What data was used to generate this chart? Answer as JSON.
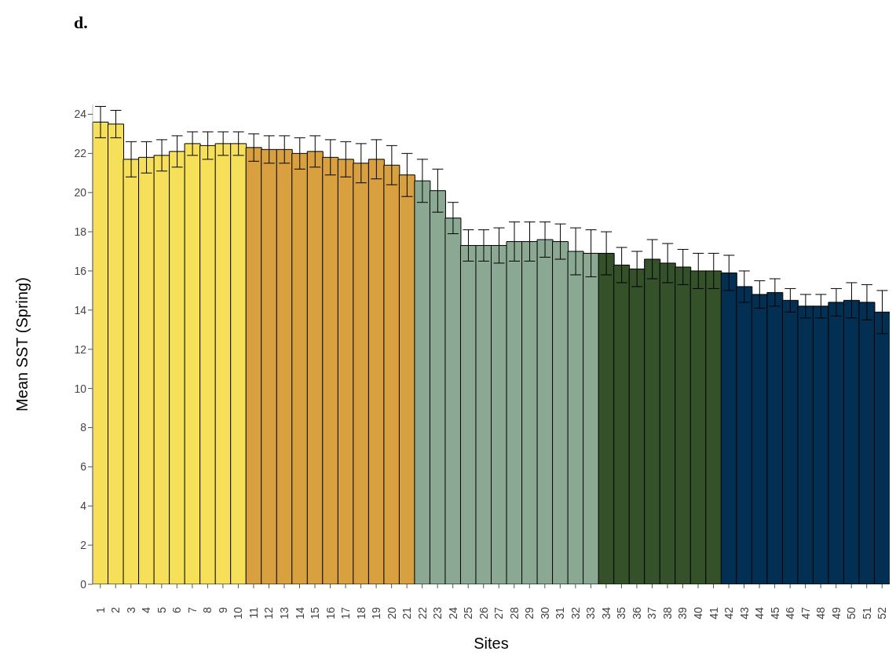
{
  "chart_data": {
    "type": "bar",
    "title": "d.",
    "xlabel": "Sites",
    "ylabel": "Mean SST (Spring)",
    "categories": [
      "1",
      "2",
      "3",
      "4",
      "5",
      "6",
      "7",
      "8",
      "9",
      "10",
      "11",
      "12",
      "13",
      "14",
      "15",
      "16",
      "17",
      "18",
      "19",
      "20",
      "21",
      "22",
      "23",
      "24",
      "25",
      "26",
      "27",
      "28",
      "29",
      "30",
      "31",
      "32",
      "33",
      "34",
      "35",
      "36",
      "37",
      "38",
      "39",
      "40",
      "41",
      "42",
      "43",
      "44",
      "45",
      "46",
      "47",
      "48",
      "49",
      "50",
      "51",
      "52"
    ],
    "values": [
      23.6,
      23.5,
      21.7,
      21.8,
      21.9,
      22.1,
      22.5,
      22.4,
      22.5,
      22.5,
      22.3,
      22.2,
      22.2,
      22.0,
      22.1,
      21.8,
      21.7,
      21.5,
      21.7,
      21.4,
      20.9,
      20.6,
      20.1,
      18.7,
      17.3,
      17.3,
      17.3,
      17.5,
      17.5,
      17.6,
      17.5,
      17.0,
      16.9,
      16.9,
      16.3,
      16.1,
      16.6,
      16.4,
      16.2,
      16.0,
      16.0,
      15.9,
      15.2,
      14.8,
      14.9,
      14.5,
      14.2,
      14.2,
      14.4,
      14.5,
      14.4,
      13.9
    ],
    "errors": [
      0.8,
      0.7,
      0.9,
      0.8,
      0.8,
      0.8,
      0.6,
      0.7,
      0.6,
      0.6,
      0.7,
      0.7,
      0.7,
      0.8,
      0.8,
      0.9,
      0.9,
      1.0,
      1.0,
      1.0,
      1.1,
      1.1,
      1.1,
      0.8,
      0.8,
      0.8,
      0.9,
      1.0,
      1.0,
      0.9,
      0.9,
      1.2,
      1.2,
      1.1,
      0.9,
      0.9,
      1.0,
      1.0,
      0.9,
      0.9,
      0.9,
      0.9,
      0.8,
      0.7,
      0.7,
      0.6,
      0.6,
      0.6,
      0.7,
      0.9,
      0.9,
      1.1
    ],
    "colors": [
      "#f6e05a",
      "#f6e05a",
      "#f6e05a",
      "#f6e05a",
      "#f6e05a",
      "#f6e05a",
      "#f6e05a",
      "#f6e05a",
      "#f6e05a",
      "#f6e05a",
      "#d9a040",
      "#d9a040",
      "#d9a040",
      "#d9a040",
      "#d9a040",
      "#d9a040",
      "#d9a040",
      "#d9a040",
      "#d9a040",
      "#d9a040",
      "#d9a040",
      "#8aa892",
      "#8aa892",
      "#8aa892",
      "#8aa892",
      "#8aa892",
      "#8aa892",
      "#8aa892",
      "#8aa892",
      "#8aa892",
      "#8aa892",
      "#8aa892",
      "#8aa892",
      "#34512a",
      "#34512a",
      "#34512a",
      "#34512a",
      "#34512a",
      "#34512a",
      "#34512a",
      "#34512a",
      "#022f52",
      "#022f52",
      "#022f52",
      "#022f52",
      "#022f52",
      "#022f52",
      "#022f52",
      "#022f52",
      "#022f52",
      "#022f52",
      "#022f52"
    ],
    "ylim": [
      0,
      24.5
    ],
    "yticks": [
      0,
      2,
      4,
      6,
      8,
      10,
      12,
      14,
      16,
      18,
      20,
      22,
      24
    ],
    "grid": false
  }
}
